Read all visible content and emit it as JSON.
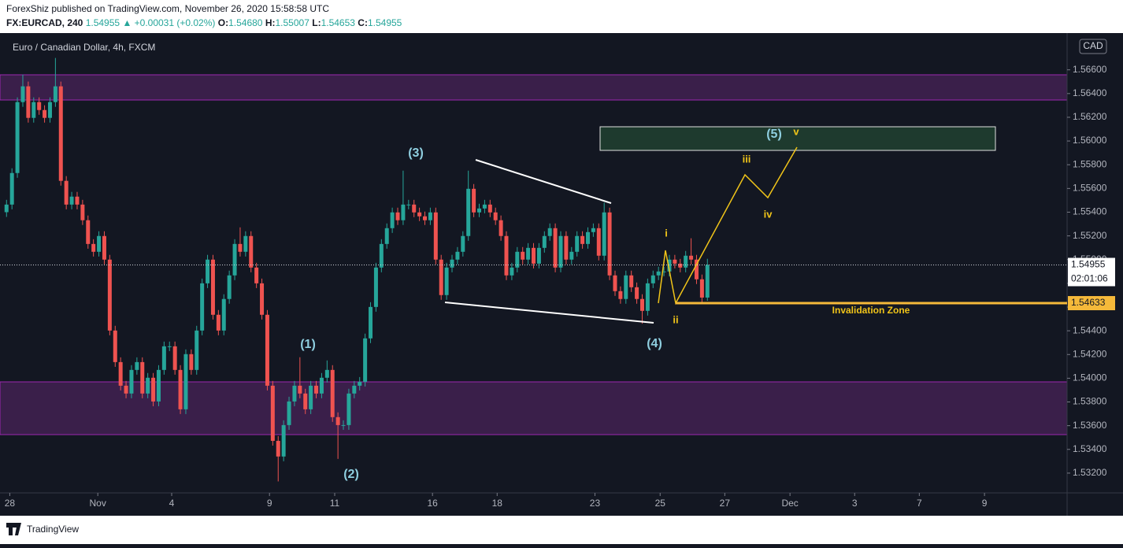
{
  "header": {
    "publisher": "ForexShiz published on TradingView.com, November 26, 2020 15:58:58 UTC",
    "symbol": "FX:EURCAD, 240",
    "price": "1.54955",
    "change": "▲ +0.00031 (+0.02%)",
    "open_label": "O:",
    "open": "1.54680",
    "high_label": "H:",
    "high": "1.55007",
    "low_label": "L:",
    "low": "1.54653",
    "close_label": "C:",
    "close": "1.54955"
  },
  "footer": {
    "brand": "TradingView"
  },
  "chart_data": {
    "type": "candlestick",
    "title": "Euro / Canadian Dollar, 4h, FXCM",
    "currency": "CAD",
    "up_color": "#26a69a",
    "down_color": "#ef5350",
    "open": [
      1.554,
      1.55464,
      1.5573,
      1.56328,
      1.56461,
      1.56195,
      1.56328,
      1.56261,
      1.56195,
      1.56328,
      1.56461,
      1.55664,
      1.55464,
      1.55531,
      1.55464,
      1.55332,
      1.55132,
      1.55066,
      1.55199,
      1.55,
      1.54402,
      1.54136,
      1.53937,
      1.53871,
      1.5407,
      1.54136,
      1.53871,
      1.54004,
      1.53804,
      1.5407,
      1.54269,
      1.54269,
      1.5407,
      1.53738,
      1.54203,
      1.5407,
      1.54402,
      1.548,
      1.55,
      1.54535,
      1.54402,
      1.54668,
      1.54867,
      1.55132,
      1.55066,
      1.55199,
      1.54933,
      1.548,
      1.54535,
      1.53937,
      1.53472,
      1.5334,
      1.53605,
      1.53804,
      1.53937,
      1.53871,
      1.53738,
      1.53937,
      1.53871,
      1.54004,
      1.5407,
      1.53672,
      1.53605,
      1.53605,
      1.53871,
      1.53937,
      1.5397,
      1.54336,
      1.54601,
      1.54933,
      1.55132,
      1.55265,
      1.55398,
      1.55332,
      1.55464,
      1.55464,
      1.55398,
      1.55365,
      1.55332,
      1.55398,
      1.55,
      1.54701,
      1.54933,
      1.55,
      1.55066,
      1.55199,
      1.55597,
      1.55398,
      1.55431,
      1.55464,
      1.55398,
      1.55332,
      1.55199,
      1.54867,
      1.54933,
      1.55066,
      1.55,
      1.55099,
      1.54966,
      1.55099,
      1.55199,
      1.55265,
      1.54933,
      1.55199,
      1.55,
      1.55066,
      1.55199,
      1.55132,
      1.55232,
      1.55265,
      1.55033,
      1.55398,
      1.54867,
      1.54734,
      1.54668,
      1.54867,
      1.54767,
      1.54668,
      1.54568,
      1.548,
      1.54867,
      1.549,
      1.549,
      1.55,
      1.54966,
      1.54933,
      1.55033,
      1.55,
      1.54834,
      1.5468
    ],
    "high": [
      1.55504,
      1.5577,
      1.56368,
      1.5656,
      1.56501,
      1.56368,
      1.56368,
      1.56301,
      1.56368,
      1.567,
      1.56501,
      1.55704,
      1.55571,
      1.55571,
      1.55504,
      1.55372,
      1.55172,
      1.55239,
      1.55239,
      1.5504,
      1.54442,
      1.54176,
      1.53977,
      1.5411,
      1.54176,
      1.54176,
      1.54044,
      1.54044,
      1.5411,
      1.54309,
      1.54309,
      1.54309,
      1.5411,
      1.54243,
      1.54243,
      1.54442,
      1.5484,
      1.5504,
      1.5504,
      1.54575,
      1.54708,
      1.54907,
      1.55172,
      1.55272,
      1.55239,
      1.55239,
      1.54973,
      1.5484,
      1.54575,
      1.53977,
      1.53512,
      1.53645,
      1.53844,
      1.53977,
      1.54177,
      1.53911,
      1.53977,
      1.53977,
      1.54044,
      1.5415,
      1.5411,
      1.53712,
      1.53645,
      1.53911,
      1.53977,
      1.5401,
      1.54376,
      1.54641,
      1.54973,
      1.55172,
      1.55305,
      1.55438,
      1.55438,
      1.5575,
      1.55504,
      1.55504,
      1.55438,
      1.55405,
      1.55438,
      1.55438,
      1.5504,
      1.54973,
      1.5504,
      1.55106,
      1.55239,
      1.5575,
      1.55637,
      1.55471,
      1.55504,
      1.55504,
      1.55438,
      1.55372,
      1.55239,
      1.54973,
      1.55106,
      1.55106,
      1.55139,
      1.55139,
      1.55139,
      1.55239,
      1.55305,
      1.55305,
      1.55239,
      1.55239,
      1.55106,
      1.55239,
      1.55239,
      1.55272,
      1.55305,
      1.55305,
      1.5548,
      1.55438,
      1.54907,
      1.54774,
      1.54907,
      1.54907,
      1.54807,
      1.54708,
      1.5484,
      1.54907,
      1.5494,
      1.5494,
      1.5504,
      1.5504,
      1.55006,
      1.55073,
      1.5518,
      1.5504,
      1.54874,
      1.55007
    ],
    "low": [
      1.5536,
      1.55424,
      1.5569,
      1.56288,
      1.56155,
      1.56155,
      1.56221,
      1.56155,
      1.56155,
      1.56288,
      1.55624,
      1.55424,
      1.55424,
      1.55424,
      1.55292,
      1.55092,
      1.55026,
      1.55026,
      1.5496,
      1.54362,
      1.54096,
      1.53897,
      1.53831,
      1.53831,
      1.5403,
      1.53831,
      1.53831,
      1.53764,
      1.53764,
      1.5403,
      1.54229,
      1.5403,
      1.53698,
      1.53698,
      1.5403,
      1.5403,
      1.54362,
      1.5476,
      1.54495,
      1.54362,
      1.54362,
      1.54628,
      1.54827,
      1.55026,
      1.55026,
      1.54893,
      1.5476,
      1.54495,
      1.53897,
      1.53432,
      1.5313,
      1.533,
      1.53565,
      1.53764,
      1.53831,
      1.53698,
      1.53698,
      1.53831,
      1.53831,
      1.53964,
      1.53632,
      1.5332,
      1.53565,
      1.53565,
      1.53831,
      1.53897,
      1.5393,
      1.54296,
      1.54561,
      1.54893,
      1.55092,
      1.55225,
      1.55292,
      1.55292,
      1.55424,
      1.55358,
      1.55325,
      1.55292,
      1.55292,
      1.5496,
      1.54661,
      1.54661,
      1.54893,
      1.5496,
      1.55026,
      1.55159,
      1.55358,
      1.55358,
      1.55391,
      1.55358,
      1.55292,
      1.55159,
      1.54827,
      1.54827,
      1.54893,
      1.5496,
      1.5496,
      1.54926,
      1.54926,
      1.55059,
      1.55159,
      1.54893,
      1.54893,
      1.5496,
      1.5496,
      1.55026,
      1.55092,
      1.55092,
      1.55192,
      1.54993,
      1.54993,
      1.54827,
      1.54694,
      1.54628,
      1.54628,
      1.54727,
      1.54628,
      1.5446,
      1.54528,
      1.5476,
      1.54827,
      1.5486,
      1.5486,
      1.54926,
      1.54893,
      1.54893,
      1.5496,
      1.54794,
      1.5464,
      1.54653
    ],
    "close": [
      1.55464,
      1.5573,
      1.56328,
      1.56461,
      1.56195,
      1.56328,
      1.56261,
      1.56195,
      1.56328,
      1.56461,
      1.55664,
      1.55464,
      1.55531,
      1.55464,
      1.55332,
      1.55132,
      1.55066,
      1.55199,
      1.55,
      1.54402,
      1.54136,
      1.53937,
      1.53871,
      1.5407,
      1.54136,
      1.53871,
      1.54004,
      1.53804,
      1.5407,
      1.54269,
      1.54269,
      1.5407,
      1.53738,
      1.54203,
      1.5407,
      1.54402,
      1.548,
      1.55,
      1.54535,
      1.54402,
      1.54668,
      1.54867,
      1.55132,
      1.55066,
      1.55199,
      1.54933,
      1.548,
      1.54535,
      1.53937,
      1.53472,
      1.5334,
      1.53605,
      1.53804,
      1.53937,
      1.53871,
      1.53738,
      1.53937,
      1.53871,
      1.54004,
      1.5407,
      1.53672,
      1.53605,
      1.53605,
      1.53871,
      1.53937,
      1.5397,
      1.54336,
      1.54601,
      1.54933,
      1.55132,
      1.55265,
      1.55398,
      1.55332,
      1.55464,
      1.55464,
      1.55398,
      1.55365,
      1.55332,
      1.55398,
      1.55,
      1.54701,
      1.54933,
      1.55,
      1.55066,
      1.55199,
      1.55597,
      1.55398,
      1.55431,
      1.55464,
      1.55398,
      1.55332,
      1.55199,
      1.54867,
      1.54933,
      1.55066,
      1.55,
      1.55099,
      1.54966,
      1.55099,
      1.55199,
      1.55265,
      1.54933,
      1.55199,
      1.55,
      1.55066,
      1.55199,
      1.55132,
      1.55232,
      1.55265,
      1.55033,
      1.55398,
      1.54867,
      1.54734,
      1.54668,
      1.54867,
      1.54767,
      1.54668,
      1.54568,
      1.548,
      1.54867,
      1.549,
      1.549,
      1.55,
      1.54966,
      1.54933,
      1.55033,
      1.55,
      1.54834,
      1.5468,
      1.54955
    ],
    "xlim": [
      -1.2,
      195.2
    ],
    "xticks": [
      {
        "value": 0.6,
        "label": "28"
      },
      {
        "value": 16.8,
        "label": "Nov"
      },
      {
        "value": 30.4,
        "label": "4"
      },
      {
        "value": 48.4,
        "label": "9"
      },
      {
        "value": 60.4,
        "label": "11"
      },
      {
        "value": 78.4,
        "label": "16"
      },
      {
        "value": 90.3,
        "label": "18"
      },
      {
        "value": 108.3,
        "label": "23"
      },
      {
        "value": 120.3,
        "label": "25"
      },
      {
        "value": 132.2,
        "label": "27"
      },
      {
        "value": 144.2,
        "label": "Dec"
      },
      {
        "value": 156.1,
        "label": "3"
      },
      {
        "value": 168,
        "label": "7"
      },
      {
        "value": 180,
        "label": "9"
      }
    ],
    "ylim": [
      1.5304,
      1.5689
    ],
    "yticks": [
      {
        "value": 1.532,
        "label": "1.53200"
      },
      {
        "value": 1.534,
        "label": "1.53400"
      },
      {
        "value": 1.536,
        "label": "1.53600"
      },
      {
        "value": 1.538,
        "label": "1.53800"
      },
      {
        "value": 1.54,
        "label": "1.54000"
      },
      {
        "value": 1.542,
        "label": "1.54200"
      },
      {
        "value": 1.544,
        "label": "1.54400"
      },
      {
        "value": 1.546,
        "label": "1.54600"
      },
      {
        "value": 1.548,
        "label": "1.54800"
      },
      {
        "value": 1.55,
        "label": "1.55000"
      },
      {
        "value": 1.552,
        "label": "1.55200"
      },
      {
        "value": 1.554,
        "label": "1.55400"
      },
      {
        "value": 1.556,
        "label": "1.55600"
      },
      {
        "value": 1.558,
        "label": "1.55800"
      },
      {
        "value": 1.56,
        "label": "1.56000"
      },
      {
        "value": 1.562,
        "label": "1.56200"
      },
      {
        "value": 1.564,
        "label": "1.56400"
      },
      {
        "value": 1.566,
        "label": "1.56600"
      }
    ],
    "last_price": 1.54955,
    "countdown": "02:01:06",
    "invalidation_level": 1.54633,
    "invalidation_label": "Invalidation Zone",
    "annotations": [
      "(1)",
      "(2)",
      "(3)",
      "(4)",
      "(5)",
      "i",
      "ii",
      "iii",
      "iv",
      "v"
    ]
  }
}
